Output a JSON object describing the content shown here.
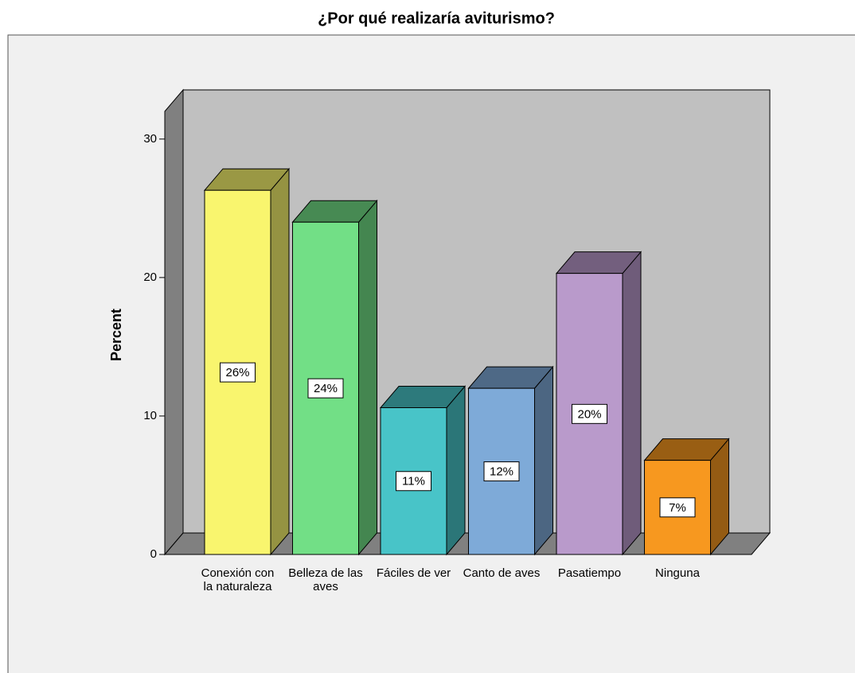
{
  "chart_data": {
    "type": "bar3d",
    "title": "¿Por qué realizaría aviturismo?",
    "y_label": "Percent",
    "categories": [
      "Conexión con la naturaleza",
      "Belleza de las aves",
      "Fáciles de ver",
      "Canto de aves",
      "Pasatiempo",
      "Ninguna"
    ],
    "values": [
      26.3,
      24.0,
      10.6,
      12.0,
      20.3,
      6.8
    ],
    "value_labels": [
      "26%",
      "24%",
      "11%",
      "12%",
      "20%",
      "7%"
    ],
    "colors": [
      "#f9f56e",
      "#72df86",
      "#48c4c8",
      "#7eaad8",
      "#b99acb",
      "#f7981f"
    ],
    "ylim": [
      0,
      32
    ],
    "yticks": [
      0,
      10,
      20,
      30
    ]
  }
}
